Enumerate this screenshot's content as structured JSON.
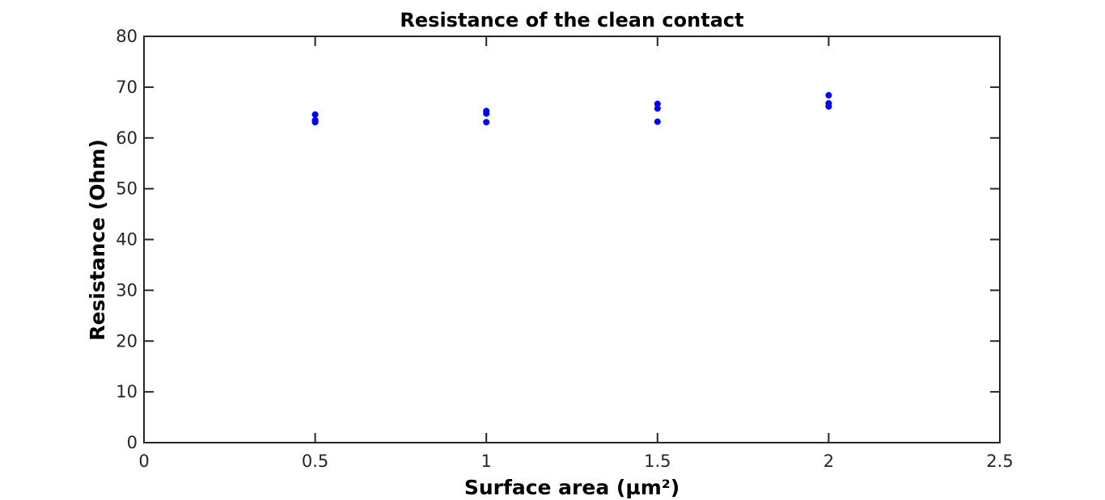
{
  "chart_data": {
    "type": "scatter",
    "title": "Resistance of the clean contact",
    "xlabel": "Surface area (µm²)",
    "ylabel": "Resistance (Ohm)",
    "xlim": [
      0,
      2.5
    ],
    "ylim": [
      0,
      80
    ],
    "xticks": [
      "0",
      "0.5",
      "1",
      "1.5",
      "2",
      "2.5"
    ],
    "yticks": [
      "0",
      "10",
      "20",
      "30",
      "40",
      "50",
      "60",
      "70",
      "80"
    ],
    "grid": false,
    "legend": null,
    "series": [
      {
        "color": "#0000ff",
        "marker": "filled-circle",
        "points": [
          {
            "x": 0.5,
            "y": 64.6
          },
          {
            "x": 0.5,
            "y": 63.5
          },
          {
            "x": 0.5,
            "y": 63.1
          },
          {
            "x": 1.0,
            "y": 65.3
          },
          {
            "x": 1.0,
            "y": 64.8
          },
          {
            "x": 1.0,
            "y": 63.1
          },
          {
            "x": 1.5,
            "y": 66.7
          },
          {
            "x": 1.5,
            "y": 65.8
          },
          {
            "x": 1.5,
            "y": 63.2
          },
          {
            "x": 2.0,
            "y": 68.4
          },
          {
            "x": 2.0,
            "y": 66.8
          },
          {
            "x": 2.0,
            "y": 66.2
          }
        ]
      }
    ]
  }
}
